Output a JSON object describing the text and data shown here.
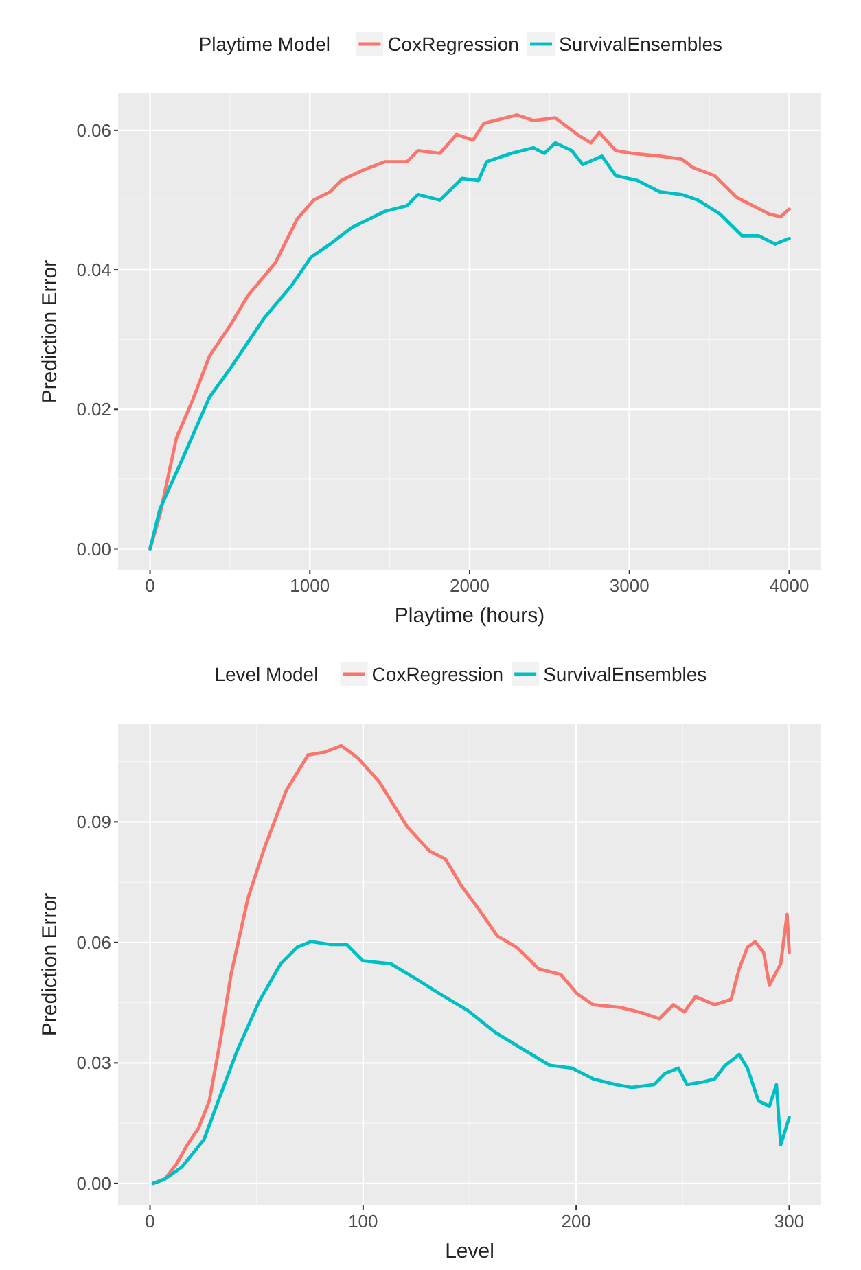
{
  "chart_data": [
    {
      "type": "line",
      "legend_title": "Playtime Model",
      "xlabel": "Playtime (hours)",
      "ylabel": "Prediction Error",
      "legend": "top",
      "grid": true,
      "xlim": [
        -200,
        4200
      ],
      "ylim": [
        -0.003,
        0.0653
      ],
      "xticks": [
        0,
        1000,
        2000,
        3000,
        4000
      ],
      "yticks": [
        {
          "value": 0,
          "label": "0.00"
        },
        {
          "value": 0.02,
          "label": "0.02"
        },
        {
          "value": 0.04,
          "label": "0.04"
        },
        {
          "value": 0.06,
          "label": "0.06"
        }
      ],
      "series": [
        {
          "name": "CoxRegression",
          "color": "#f8766d",
          "x": [
            0,
            62,
            165,
            268,
            371,
            509,
            612,
            784,
            921,
            1024,
            1127,
            1196,
            1333,
            1471,
            1608,
            1677,
            1814,
            1918,
            2021,
            2089,
            2296,
            2399,
            2536,
            2674,
            2759,
            2811,
            2914,
            3017,
            3189,
            3326,
            3395,
            3533,
            3670,
            3773,
            3876,
            3945,
            4000
          ],
          "values": [
            0,
            0.0049,
            0.0159,
            0.0214,
            0.0276,
            0.0323,
            0.0363,
            0.041,
            0.0473,
            0.05,
            0.0512,
            0.0528,
            0.0543,
            0.0555,
            0.0555,
            0.0571,
            0.0567,
            0.0594,
            0.0586,
            0.061,
            0.0622,
            0.0614,
            0.0618,
            0.0594,
            0.0582,
            0.0597,
            0.0571,
            0.0567,
            0.0563,
            0.0559,
            0.0547,
            0.0535,
            0.0504,
            0.0492,
            0.048,
            0.0476,
            0.0487
          ]
        },
        {
          "name": "SurvivalEnsembles",
          "color": "#00bfc4",
          "x": [
            0,
            62,
            199,
            371,
            509,
            715,
            887,
            1007,
            1127,
            1265,
            1471,
            1608,
            1677,
            1814,
            1952,
            2055,
            2107,
            2261,
            2399,
            2467,
            2536,
            2639,
            2708,
            2828,
            2914,
            3052,
            3189,
            3326,
            3429,
            3567,
            3704,
            3808,
            3911,
            4000
          ],
          "values": [
            0,
            0.0057,
            0.0127,
            0.0217,
            0.0261,
            0.0331,
            0.0378,
            0.0418,
            0.0437,
            0.0461,
            0.0484,
            0.0492,
            0.0508,
            0.05,
            0.0531,
            0.0528,
            0.0555,
            0.0567,
            0.0575,
            0.0567,
            0.0582,
            0.0571,
            0.0551,
            0.0563,
            0.0535,
            0.0528,
            0.0512,
            0.0508,
            0.05,
            0.048,
            0.0449,
            0.0449,
            0.0437,
            0.0445
          ]
        }
      ]
    },
    {
      "type": "line",
      "legend_title": "Level Model",
      "xlabel": "Level",
      "ylabel": "Prediction Error",
      "legend": "top",
      "grid": true,
      "xlim": [
        -15,
        315
      ],
      "ylim": [
        -0.0055,
        0.1145
      ],
      "xticks": [
        0,
        100,
        200,
        300
      ],
      "yticks": [
        {
          "value": 0,
          "label": "0.00"
        },
        {
          "value": 0.03,
          "label": "0.03"
        },
        {
          "value": 0.06,
          "label": "0.06"
        },
        {
          "value": 0.09,
          "label": "0.09"
        }
      ],
      "series": [
        {
          "name": "CoxRegression",
          "color": "#f8766d",
          "x": [
            1.5,
            7,
            12.4,
            17.5,
            22.7,
            27.8,
            33,
            38,
            46,
            53.6,
            63.9,
            74.2,
            82,
            89.7,
            97.4,
            107.7,
            120.6,
            131,
            138.7,
            146.4,
            154.1,
            163,
            172,
            182.5,
            192.8,
            200.5,
            208,
            221,
            231.4,
            239,
            245.6,
            250.8,
            256,
            265,
            272.7,
            276.5,
            280.4,
            284,
            288,
            290.7,
            296,
            299,
            300
          ],
          "values": [
            0,
            0.0011,
            0.0048,
            0.0096,
            0.0137,
            0.0205,
            0.0356,
            0.052,
            0.0711,
            0.0834,
            0.0978,
            0.1067,
            0.1074,
            0.109,
            0.106,
            0.0999,
            0.0889,
            0.0828,
            0.0807,
            0.0739,
            0.0684,
            0.0616,
            0.0588,
            0.0534,
            0.052,
            0.0472,
            0.0445,
            0.0438,
            0.0424,
            0.041,
            0.0445,
            0.0427,
            0.0465,
            0.0445,
            0.0458,
            0.0534,
            0.0588,
            0.0602,
            0.0575,
            0.0493,
            0.0547,
            0.067,
            0.0575
          ]
        },
        {
          "name": "SurvivalEnsembles",
          "color": "#00bfc4",
          "x": [
            1.5,
            7,
            15,
            25.3,
            33,
            40.7,
            51,
            61.3,
            69,
            75.5,
            84.5,
            92.3,
            100,
            113,
            125.8,
            136,
            149,
            162,
            174.7,
            187.6,
            198,
            208,
            218.6,
            226,
            236.6,
            241.8,
            248,
            252,
            259.8,
            265,
            270,
            276.5,
            280.4,
            285.6,
            290.7,
            294,
            296,
            300
          ],
          "values": [
            0,
            0.0011,
            0.0041,
            0.0109,
            0.0219,
            0.0328,
            0.0451,
            0.0547,
            0.0588,
            0.0602,
            0.0595,
            0.0595,
            0.0554,
            0.0547,
            0.0506,
            0.0472,
            0.0431,
            0.0376,
            0.0335,
            0.0294,
            0.0287,
            0.026,
            0.0246,
            0.0239,
            0.0246,
            0.0274,
            0.0287,
            0.0246,
            0.0253,
            0.026,
            0.0294,
            0.0321,
            0.0287,
            0.0205,
            0.0192,
            0.0246,
            0.0096,
            0.0164
          ]
        }
      ]
    }
  ]
}
